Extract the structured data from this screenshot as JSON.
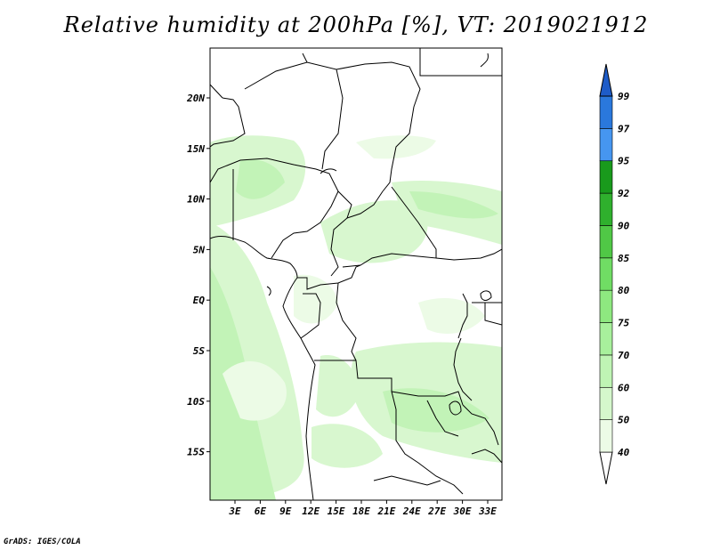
{
  "title": "Relative humidity at 200hPa [%], VT: 2019021912",
  "credit": "GrADS: IGES/COLA",
  "map": {
    "lat_labels": [
      "20N",
      "15N",
      "10N",
      "5N",
      "EQ",
      "5S",
      "10S",
      "15S"
    ],
    "lon_labels": [
      "3E",
      "6E",
      "9E",
      "12E",
      "15E",
      "18E",
      "21E",
      "24E",
      "27E",
      "30E",
      "33E"
    ]
  },
  "colorbar": {
    "levels": [
      "40",
      "50",
      "60",
      "70",
      "75",
      "80",
      "85",
      "90",
      "92",
      "95",
      "97",
      "99"
    ],
    "colors": [
      "#ffffff",
      "#ecfbe6",
      "#d5f7cc",
      "#bff4b4",
      "#a8f09c",
      "#8ee880",
      "#70dd64",
      "#50c846",
      "#2fb02d",
      "#199a1c",
      "#4696f0",
      "#2a78dc",
      "#1e5cc8"
    ]
  }
}
